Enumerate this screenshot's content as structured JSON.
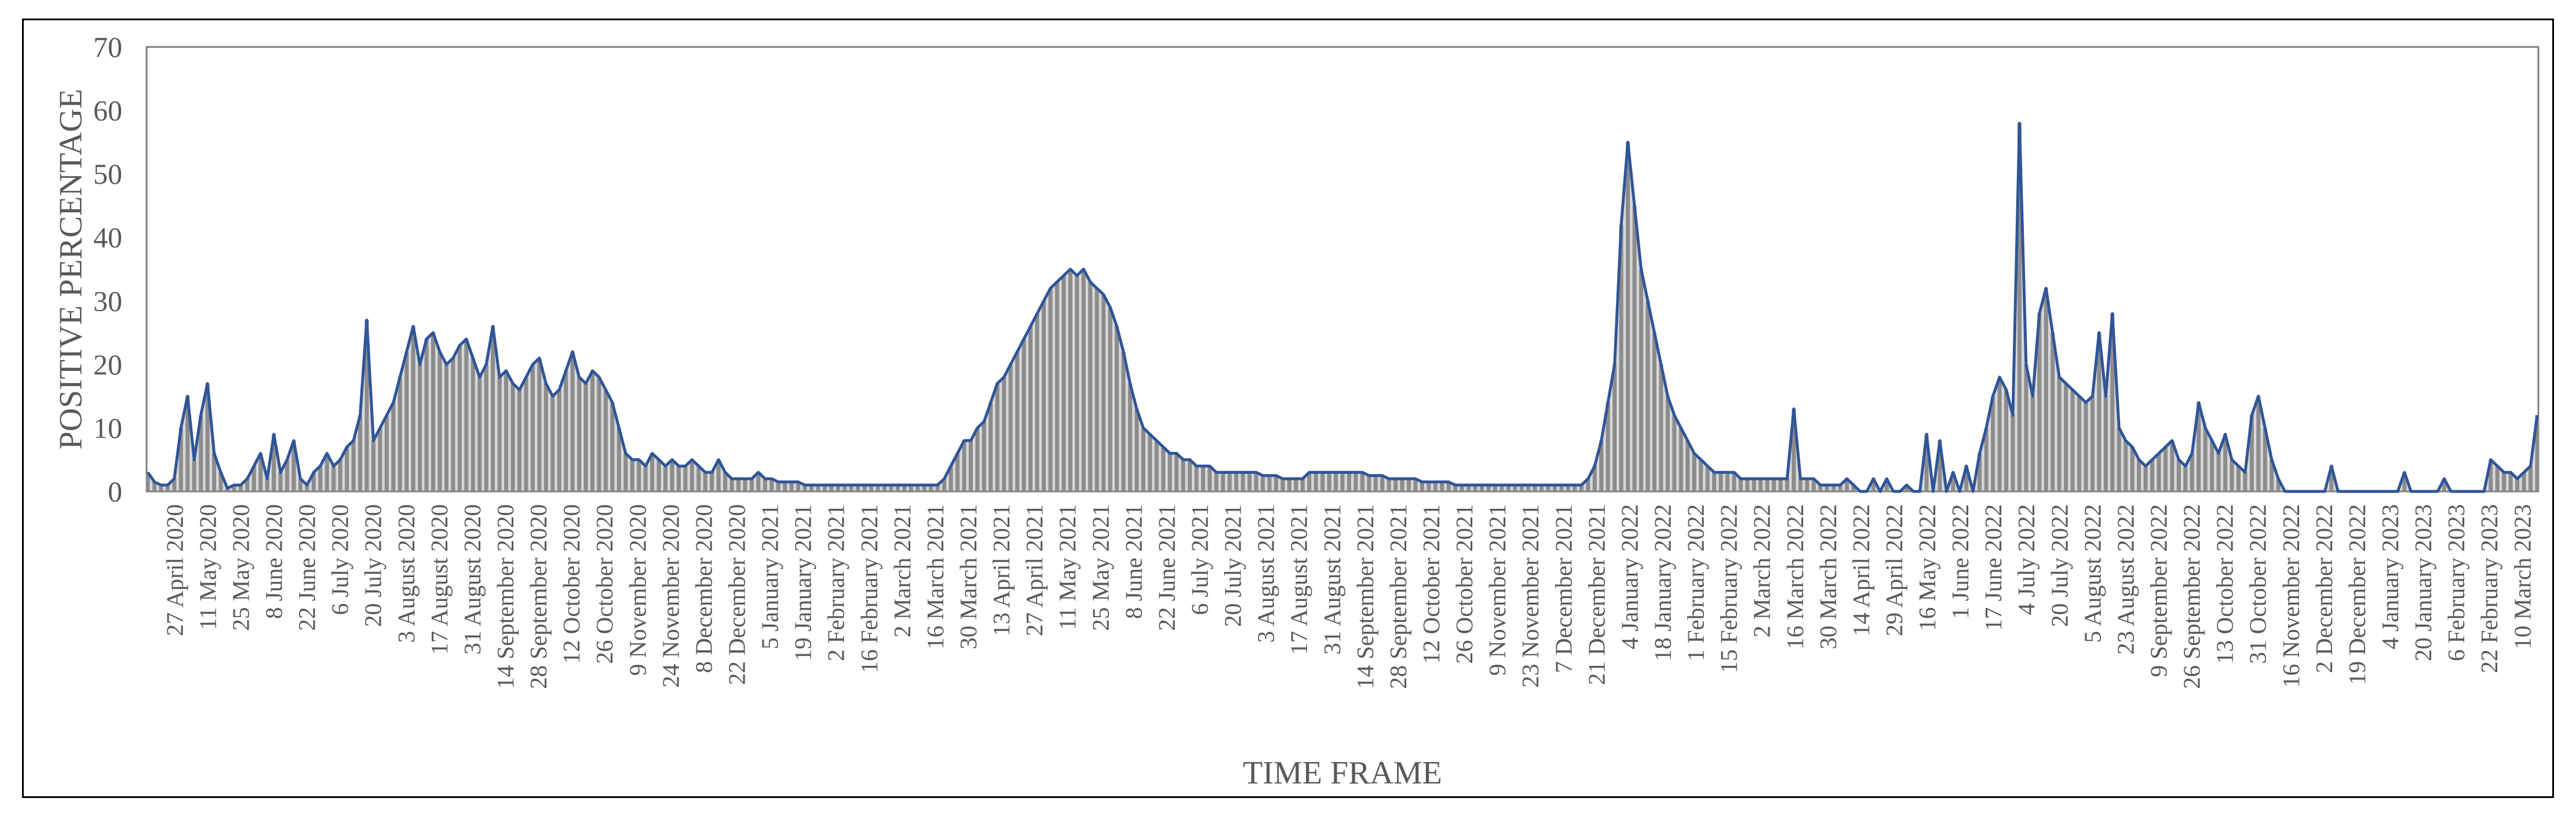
{
  "chart_data": {
    "type": "area",
    "title": "",
    "xlabel": "TIME FRAME",
    "ylabel": "POSITIVE PERCENTAGE",
    "ylim": [
      0,
      70
    ],
    "yticks": [
      0,
      10,
      20,
      30,
      40,
      50,
      60,
      70
    ],
    "grid": false,
    "legend": "none",
    "colors": {
      "fill": "#8c8c8c",
      "line": "#2f5597",
      "axis": "#7f7f7f",
      "text": "#595959",
      "border": "#000000"
    },
    "x_start": "27 April 2020",
    "x_end": "10 March 2023",
    "x_tick_labels": [
      "27 April 2020",
      "11 May 2020",
      "25 May 2020",
      "8 June 2020",
      "22 June 2020",
      "6 July 2020",
      "20 July 2020",
      "3 August 2020",
      "17 August 2020",
      "31 August 2020",
      "14 September 2020",
      "28 September 2020",
      "12 October 2020",
      "26 October 2020",
      "9 November 2020",
      "24 November 2020",
      "8 December 2020",
      "22 December 2020",
      "5 January 2021",
      "19 January 2021",
      "2 February 2021",
      "16 February 2021",
      "2 March 2021",
      "16 March 2021",
      "30 March 2021",
      "13 April 2021",
      "27 April 2021",
      "11 May 2021",
      "25 May 2021",
      "8 June 2021",
      "22 June 2021",
      "6 July 2021",
      "20 July 2021",
      "3 August 2021",
      "17 August 2021",
      "31 August 2021",
      "14 September 2021",
      "28 September 2021",
      "12 October 2021",
      "26 October 2021",
      "9 November 2021",
      "23 November 2021",
      "7 December 2021",
      "21 December 2021",
      "4 January 2022",
      "18 January 2022",
      "1 February 2022",
      "15 February 2022",
      "2 March 2022",
      "16 March 2022",
      "30 March 2022",
      "14 April 2022",
      "29 April 2022",
      "16 May 2022",
      "1 June 2022",
      "17 June 2022",
      "4 July 2022",
      "20 July 2022",
      "5 August 2022",
      "23 August 2022",
      "9 September 2022",
      "26 September 2022",
      "13 October 2022",
      "31 October 2022",
      "16 November 2022",
      "2 December 2022",
      "19 December 2022",
      "4 January 2023",
      "20 January 2023",
      "6 February 2023",
      "22 February 2023",
      "10 March 2023"
    ],
    "series": [
      {
        "values": [
          3,
          1.5,
          1,
          1,
          2,
          10,
          15,
          5,
          12,
          17,
          6,
          3,
          0.5,
          1,
          1,
          2,
          4,
          6,
          2,
          9,
          3,
          5,
          8,
          2,
          1,
          3,
          4,
          6,
          4,
          5,
          7,
          8,
          12,
          27,
          8,
          10,
          12,
          14,
          18,
          22,
          26,
          20,
          24,
          25,
          22,
          20,
          21,
          23,
          24,
          21,
          18,
          20,
          26,
          18,
          19,
          17,
          16,
          18,
          20,
          21,
          17,
          15,
          16,
          19,
          22,
          18,
          17,
          19,
          18,
          16,
          14,
          10,
          6,
          5,
          5,
          4,
          6,
          5,
          4,
          5,
          4,
          4,
          5,
          4,
          3,
          3,
          5,
          3,
          2,
          2,
          2,
          2,
          3,
          2,
          2,
          1.5,
          1.5,
          1.5,
          1.5,
          1,
          1,
          1,
          1,
          1,
          1,
          1,
          1,
          1,
          1,
          1,
          1,
          1,
          1,
          1,
          1,
          1,
          1,
          1,
          1,
          1,
          2,
          4,
          6,
          8,
          8,
          10,
          11,
          14,
          17,
          18,
          20,
          22,
          24,
          26,
          28,
          30,
          32,
          33,
          34,
          35,
          34,
          35,
          33,
          32,
          31,
          29,
          26,
          22,
          17,
          13,
          10,
          9,
          8,
          7,
          6,
          6,
          5,
          5,
          4,
          4,
          4,
          3,
          3,
          3,
          3,
          3,
          3,
          3,
          2.5,
          2.5,
          2.5,
          2,
          2,
          2,
          2,
          3,
          3,
          3,
          3,
          3,
          3,
          3,
          3,
          3,
          2.5,
          2.5,
          2.5,
          2,
          2,
          2,
          2,
          2,
          1.5,
          1.5,
          1.5,
          1.5,
          1.5,
          1,
          1,
          1,
          1,
          1,
          1,
          1,
          1,
          1,
          1,
          1,
          1,
          1,
          1,
          1,
          1,
          1,
          1,
          1,
          1,
          2,
          4,
          8,
          14,
          20,
          42,
          55,
          45,
          35,
          30,
          25,
          20,
          15,
          12,
          10,
          8,
          6,
          5,
          4,
          3,
          3,
          3,
          3,
          2,
          2,
          2,
          2,
          2,
          2,
          2,
          2,
          13,
          2,
          2,
          2,
          1,
          1,
          1,
          1,
          2,
          1,
          0,
          0,
          2,
          0,
          2,
          0,
          0,
          1,
          0,
          0,
          9,
          0,
          8,
          0,
          3,
          0,
          4,
          0,
          6,
          10,
          15,
          18,
          16,
          12,
          58,
          20,
          15,
          28,
          32,
          25,
          18,
          17,
          16,
          15,
          14,
          15,
          25,
          15,
          28,
          10,
          8,
          7,
          5,
          4,
          5,
          6,
          7,
          8,
          5,
          4,
          6,
          14,
          10,
          8,
          6,
          9,
          5,
          4,
          3,
          12,
          15,
          10,
          5,
          2,
          0,
          0,
          0,
          0,
          0,
          0,
          0,
          4,
          0,
          0,
          0,
          0,
          0,
          0,
          0,
          0,
          0,
          0,
          3,
          0,
          0,
          0,
          0,
          0,
          2,
          0,
          0,
          0,
          0,
          0,
          0,
          5,
          4,
          3,
          3,
          2,
          3,
          4,
          12
        ]
      }
    ]
  }
}
